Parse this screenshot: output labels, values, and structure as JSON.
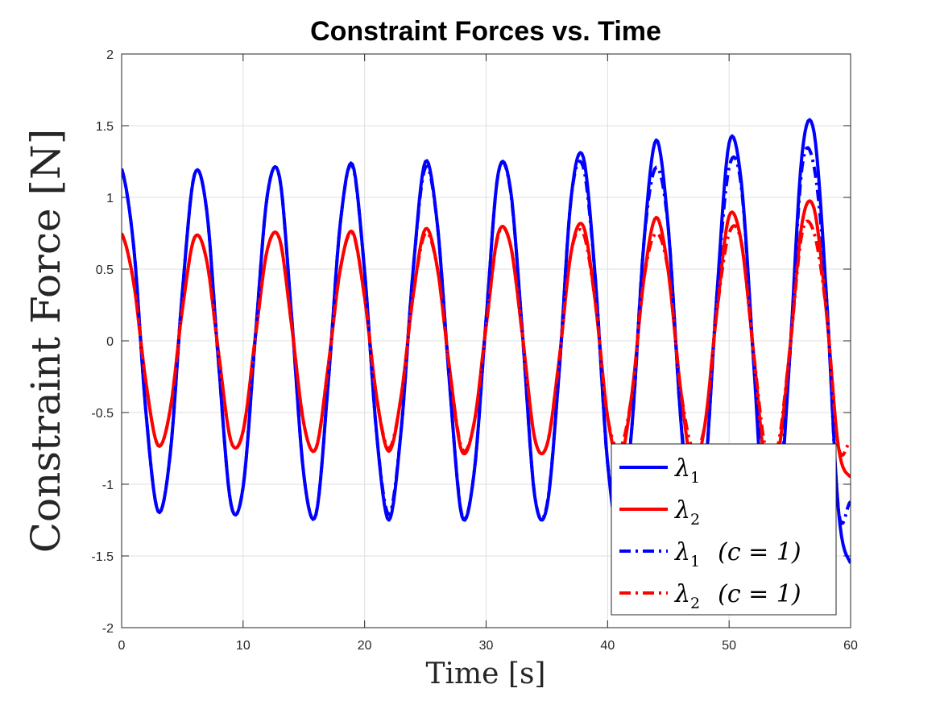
{
  "chart_data": {
    "type": "line",
    "title": "Constraint Forces vs. Time",
    "xlabel": "Time [s]",
    "ylabel": "Constraint Force [N]",
    "xlim": [
      0,
      60
    ],
    "ylim": [
      -2,
      2
    ],
    "xticks": [
      0,
      10,
      20,
      30,
      40,
      50,
      60
    ],
    "yticks": [
      -2,
      -1.5,
      -1,
      -0.5,
      0,
      0.5,
      1,
      1.5,
      2
    ],
    "xtick_labels": [
      "0",
      "10",
      "20",
      "30",
      "40",
      "50",
      "60"
    ],
    "ytick_labels": [
      "-2",
      "-1.5",
      "-1",
      "-0.5",
      "0",
      "0.5",
      "1",
      "1.5",
      "2"
    ],
    "grid": true,
    "legend_position": "bottom-right",
    "x": [
      0,
      1,
      2,
      3,
      4,
      5,
      6,
      7,
      8,
      9,
      10,
      11,
      12,
      13,
      14,
      15,
      16,
      17,
      18,
      19,
      20,
      21,
      22,
      23,
      24,
      25,
      26,
      27,
      28,
      29,
      30,
      31,
      32,
      33,
      34,
      35,
      36,
      37,
      38,
      39,
      40,
      41,
      42,
      43,
      44,
      45,
      46,
      47,
      48,
      49,
      50,
      51,
      52,
      53,
      54,
      55,
      56,
      57,
      58,
      59,
      60
    ],
    "series": [
      {
        "name": "λ1",
        "legend_main": "λ",
        "legend_sub": "1",
        "legend_suffix": "",
        "color": "#0000ff",
        "style": "solid",
        "values": [
          1.2,
          0.65,
          -0.5,
          -1.19,
          -0.79,
          0.34,
          1.16,
          0.91,
          -0.18,
          -1.14,
          -1.02,
          0.02,
          1.02,
          1.14,
          0.16,
          -0.94,
          -1.21,
          -0.3,
          0.82,
          1.23,
          0.48,
          -0.66,
          -1.25,
          -0.63,
          0.5,
          1.25,
          0.8,
          -0.31,
          -1.22,
          -0.93,
          0.15,
          1.17,
          1.06,
          0.04,
          -1.08,
          -1.16,
          -0.23,
          1.0,
          1.28,
          0.42,
          -0.85,
          -1.34,
          -0.6,
          0.7,
          1.4,
          0.78,
          -0.52,
          -1.41,
          -0.95,
          0.33,
          1.38,
          1.11,
          -0.12,
          -1.38,
          -1.29,
          -0.1,
          1.3,
          1.45,
          0.33,
          -1.18,
          -1.55
        ]
      },
      {
        "name": "λ2",
        "legend_main": "λ",
        "legend_sub": "2",
        "legend_suffix": "",
        "color": "#ff0000",
        "style": "solid",
        "values": [
          0.75,
          0.4,
          -0.29,
          -0.73,
          -0.48,
          0.22,
          0.72,
          0.56,
          -0.1,
          -0.7,
          -0.63,
          0.02,
          0.64,
          0.71,
          0.1,
          -0.58,
          -0.75,
          -0.18,
          0.5,
          0.76,
          0.3,
          -0.4,
          -0.77,
          -0.39,
          0.32,
          0.78,
          0.5,
          -0.2,
          -0.77,
          -0.58,
          0.1,
          0.75,
          0.67,
          0.03,
          -0.68,
          -0.73,
          -0.14,
          0.62,
          0.8,
          0.26,
          -0.53,
          -0.83,
          -0.37,
          0.44,
          0.86,
          0.48,
          -0.33,
          -0.88,
          -0.59,
          0.21,
          0.87,
          0.69,
          -0.07,
          -0.87,
          -0.81,
          -0.06,
          0.82,
          0.92,
          0.21,
          -0.74,
          -0.95
        ]
      },
      {
        "name": "λ1 (c = 1)",
        "legend_main": "λ",
        "legend_sub": "1",
        "legend_suffix": "(c = 1)",
        "color": "#0000ff",
        "style": "dashdot",
        "values": [
          1.2,
          0.65,
          -0.5,
          -1.19,
          -0.79,
          0.34,
          1.16,
          0.91,
          -0.18,
          -1.14,
          -1.02,
          0.02,
          1.02,
          1.14,
          0.16,
          -0.94,
          -1.21,
          -0.3,
          0.82,
          1.22,
          0.48,
          -0.66,
          -1.21,
          -0.63,
          0.5,
          1.21,
          0.8,
          -0.31,
          -1.21,
          -0.93,
          0.15,
          1.17,
          1.05,
          0.04,
          -1.08,
          -1.15,
          -0.23,
          1.0,
          1.21,
          0.42,
          -0.85,
          -1.21,
          -0.6,
          0.7,
          1.21,
          0.78,
          -0.52,
          -1.21,
          -0.95,
          0.33,
          1.21,
          1.08,
          -0.12,
          -1.21,
          -1.18,
          -0.1,
          1.21,
          1.21,
          0.33,
          -1.18,
          -1.12
        ]
      },
      {
        "name": "λ2 (c = 1)",
        "legend_main": "λ",
        "legend_sub": "2",
        "legend_suffix": "(c = 1)",
        "color": "#ff0000",
        "style": "dashdot",
        "values": [
          0.75,
          0.4,
          -0.29,
          -0.73,
          -0.48,
          0.22,
          0.72,
          0.56,
          -0.1,
          -0.7,
          -0.63,
          0.02,
          0.64,
          0.71,
          0.1,
          -0.58,
          -0.75,
          -0.18,
          0.5,
          0.75,
          0.3,
          -0.4,
          -0.75,
          -0.39,
          0.32,
          0.75,
          0.5,
          -0.2,
          -0.75,
          -0.58,
          0.1,
          0.74,
          0.67,
          0.03,
          -0.68,
          -0.73,
          -0.14,
          0.62,
          0.75,
          0.26,
          -0.53,
          -0.75,
          -0.37,
          0.44,
          0.75,
          0.48,
          -0.33,
          -0.75,
          -0.59,
          0.21,
          0.75,
          0.69,
          -0.07,
          -0.75,
          -0.74,
          -0.06,
          0.75,
          0.75,
          0.21,
          -0.74,
          -0.7
        ]
      }
    ]
  }
}
